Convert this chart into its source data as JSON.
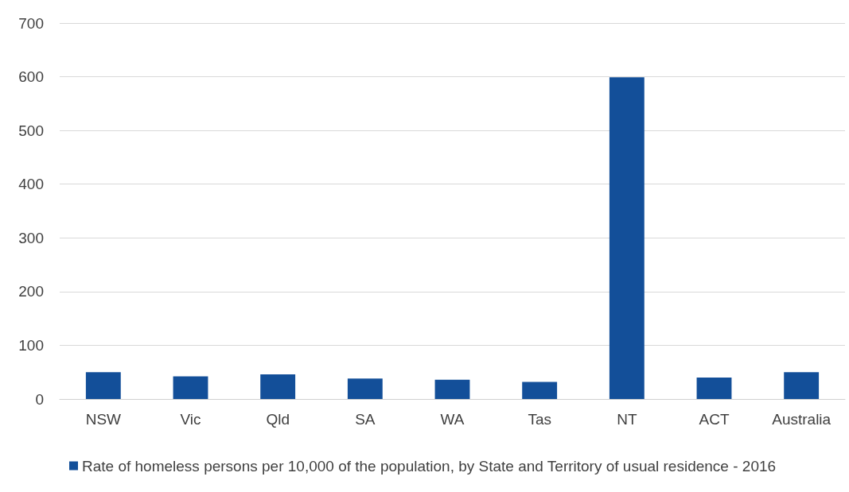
{
  "chart_data": {
    "type": "bar",
    "categories": [
      "NSW",
      "Vic",
      "Qld",
      "SA",
      "WA",
      "Tas",
      "NT",
      "ACT",
      "Australia"
    ],
    "series": [
      {
        "name": "Rate of homeless persons per 10,000 of the population, by State and Territory of usual residence - 2016",
        "color": "#134f99",
        "values": [
          50,
          42,
          46,
          38,
          36,
          32,
          599,
          40,
          50
        ]
      }
    ],
    "ylim": [
      0,
      700
    ],
    "yticks": [
      0,
      100,
      200,
      300,
      400,
      500,
      600,
      700
    ],
    "grid": "y",
    "legend": "bottom"
  }
}
